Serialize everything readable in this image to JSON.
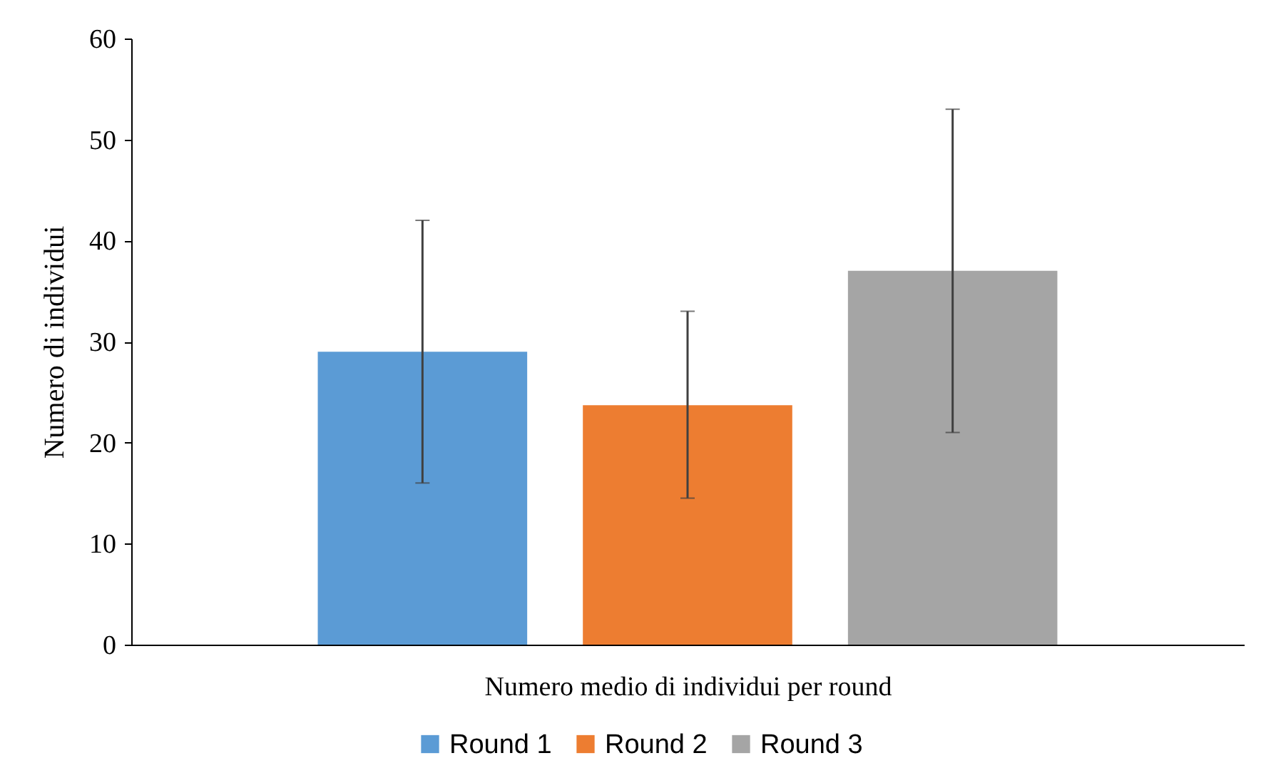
{
  "chart_data": {
    "type": "bar",
    "xlabel": "Numero medio di individui per round",
    "ylabel": "Numero di individui",
    "categories": [
      null
    ],
    "series": [
      {
        "name": "Round 1",
        "color": "#5b9bd5",
        "values": [
          29
        ],
        "errors": [
          [
            16,
            42
          ]
        ]
      },
      {
        "name": "Round 2",
        "color": "#ed7d31",
        "values": [
          23.7
        ],
        "errors": [
          [
            14.5,
            33
          ]
        ]
      },
      {
        "name": "Round 3",
        "color": "#a5a5a5",
        "values": [
          37
        ],
        "errors": [
          [
            21,
            53
          ]
        ]
      }
    ],
    "ylim": [
      0,
      60
    ],
    "yticks": [
      0,
      10,
      20,
      30,
      40,
      50,
      60
    ],
    "grid": false,
    "legend": "bottom"
  }
}
